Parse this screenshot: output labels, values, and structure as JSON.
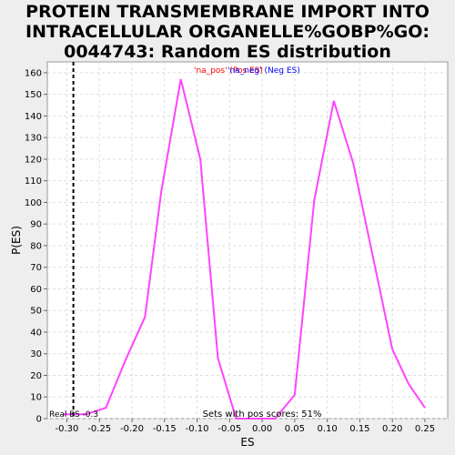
{
  "chart_data": {
    "type": "line",
    "title": [
      "PROTEIN TRANSMEMBRANE IMPORT INTO",
      "INTRACELLULAR ORGANELLE%GOBP%GO:",
      "0044743: Random ES distribution"
    ],
    "xlabel": "ES",
    "ylabel": "P(ES)",
    "xlim": [
      -0.33,
      0.285
    ],
    "ylim": [
      0,
      165
    ],
    "xticks": [
      -0.3,
      -0.25,
      -0.2,
      -0.15,
      -0.1,
      -0.05,
      0.0,
      0.05,
      0.1,
      0.15,
      0.2,
      0.25
    ],
    "xtick_labels": [
      "-0.30",
      "-0.25",
      "-0.20",
      "-0.15",
      "-0.10",
      "-0.05",
      "0.00",
      "0.05",
      "0.10",
      "0.15",
      "0.20",
      "0.25"
    ],
    "yticks": [
      0,
      10,
      20,
      30,
      40,
      50,
      60,
      70,
      80,
      90,
      100,
      110,
      120,
      130,
      140,
      150,
      160
    ],
    "grid": true,
    "legend": [
      {
        "label": "'na_pos' (Pos ES)",
        "color": "#ff0000"
      },
      {
        "label": "'na_neg' (Neg ES)",
        "color": "#0000ff"
      }
    ],
    "series": [
      {
        "color": "#ff44ff",
        "x": [
          -0.305,
          -0.27,
          -0.24,
          -0.21,
          -0.18,
          -0.155,
          -0.125,
          -0.095,
          -0.068,
          -0.04,
          -0.01,
          0.02,
          0.05,
          0.08,
          0.11,
          0.14,
          0.17,
          0.2,
          0.225,
          0.25
        ],
        "y": [
          2,
          2,
          5,
          27,
          47,
          105,
          157,
          120,
          28,
          0,
          0,
          0,
          11,
          101,
          147,
          118,
          75,
          32,
          16,
          5
        ]
      }
    ],
    "real_es": {
      "value": -0.29,
      "label": "Real ES -0.3"
    },
    "annotation": "Sets with pos scores: 51%"
  }
}
